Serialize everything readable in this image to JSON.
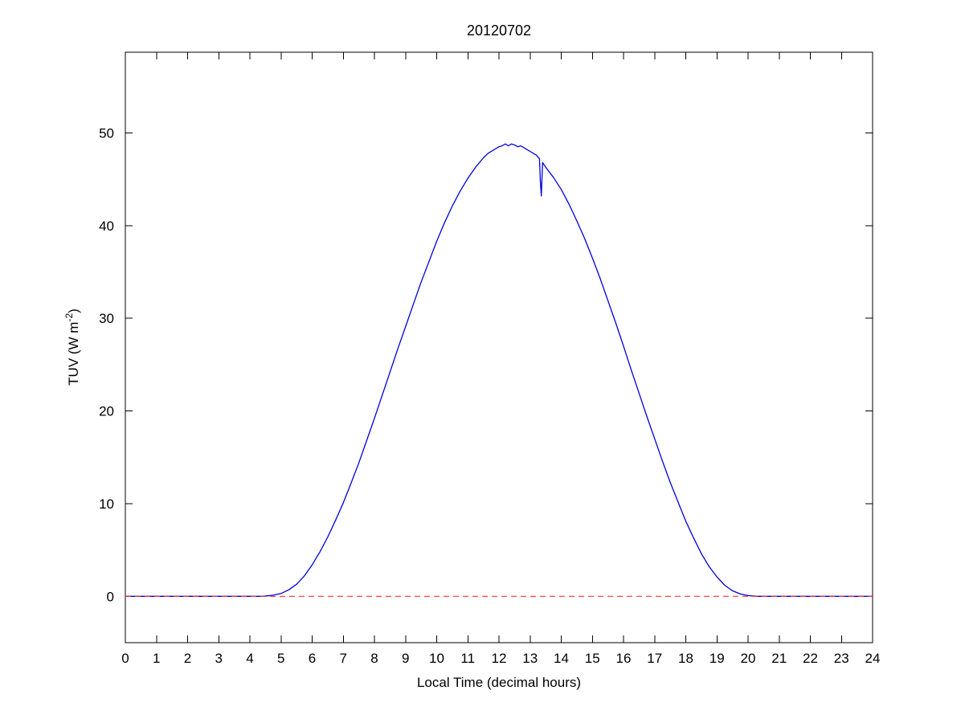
{
  "chart_data": {
    "type": "line",
    "title": "20120702",
    "xlabel": "Local Time (decimal hours)",
    "ylabel": "TUV (W m⁻²)",
    "ylabel_parts": {
      "base": "TUV (W m",
      "sup": "-2",
      "close": ")"
    },
    "xlim": [
      0,
      24
    ],
    "ylim": [
      -5.0,
      58.7
    ],
    "xticks": [
      0,
      1,
      2,
      3,
      4,
      5,
      6,
      7,
      8,
      9,
      10,
      11,
      12,
      13,
      14,
      15,
      16,
      17,
      18,
      19,
      20,
      21,
      22,
      23,
      24
    ],
    "yticks": [
      0,
      10,
      20,
      30,
      40,
      50
    ],
    "grid": false,
    "legend_position": "none",
    "axis_color": "#000000",
    "background_color": "#ffffff",
    "series": [
      {
        "name": "tuv-irradiance-curve",
        "color": "#0000dd",
        "style": "solid",
        "width": 1.3,
        "points": [
          [
            0,
            0
          ],
          [
            0.5,
            0
          ],
          [
            1,
            0
          ],
          [
            1.5,
            0
          ],
          [
            2,
            0
          ],
          [
            2.5,
            0
          ],
          [
            3,
            0
          ],
          [
            3.5,
            0
          ],
          [
            4,
            0
          ],
          [
            4.4,
            0
          ],
          [
            4.7,
            0.1
          ],
          [
            5,
            0.3
          ],
          [
            5.25,
            0.7
          ],
          [
            5.5,
            1.3
          ],
          [
            5.75,
            2.2
          ],
          [
            6,
            3.4
          ],
          [
            6.25,
            4.8
          ],
          [
            6.5,
            6.4
          ],
          [
            6.75,
            8.2
          ],
          [
            7,
            10.1
          ],
          [
            7.25,
            12.2
          ],
          [
            7.5,
            14.4
          ],
          [
            7.75,
            16.8
          ],
          [
            8,
            19.2
          ],
          [
            8.25,
            21.7
          ],
          [
            8.5,
            24.2
          ],
          [
            8.75,
            26.7
          ],
          [
            9,
            29.1
          ],
          [
            9.25,
            31.5
          ],
          [
            9.5,
            33.9
          ],
          [
            9.75,
            36.1
          ],
          [
            10,
            38.3
          ],
          [
            10.25,
            40.3
          ],
          [
            10.5,
            42.1
          ],
          [
            10.75,
            43.7
          ],
          [
            11,
            45.1
          ],
          [
            11.25,
            46.3
          ],
          [
            11.5,
            47.3
          ],
          [
            11.65,
            47.8
          ],
          [
            11.8,
            48.1
          ],
          [
            11.9,
            48.3
          ],
          [
            12,
            48.5
          ],
          [
            12.1,
            48.6
          ],
          [
            12.2,
            48.8
          ],
          [
            12.3,
            48.6
          ],
          [
            12.4,
            48.8
          ],
          [
            12.5,
            48.7
          ],
          [
            12.6,
            48.5
          ],
          [
            12.7,
            48.6
          ],
          [
            12.8,
            48.4
          ],
          [
            12.9,
            48.2
          ],
          [
            13,
            48.0
          ],
          [
            13.1,
            47.8
          ],
          [
            13.2,
            47.6
          ],
          [
            13.3,
            47.2
          ],
          [
            13.33,
            44.8
          ],
          [
            13.36,
            43.2
          ],
          [
            13.4,
            46.8
          ],
          [
            13.5,
            46.3
          ],
          [
            13.75,
            45.2
          ],
          [
            14,
            43.9
          ],
          [
            14.25,
            42.3
          ],
          [
            14.5,
            40.5
          ],
          [
            14.75,
            38.6
          ],
          [
            15,
            36.5
          ],
          [
            15.25,
            34.3
          ],
          [
            15.5,
            31.9
          ],
          [
            15.75,
            29.5
          ],
          [
            16,
            27.0
          ],
          [
            16.25,
            24.4
          ],
          [
            16.5,
            21.9
          ],
          [
            16.75,
            19.4
          ],
          [
            17,
            17.0
          ],
          [
            17.25,
            14.6
          ],
          [
            17.5,
            12.3
          ],
          [
            17.75,
            10.2
          ],
          [
            18,
            8.1
          ],
          [
            18.25,
            6.3
          ],
          [
            18.5,
            4.6
          ],
          [
            18.75,
            3.2
          ],
          [
            19,
            2.1
          ],
          [
            19.25,
            1.2
          ],
          [
            19.5,
            0.6
          ],
          [
            19.75,
            0.25
          ],
          [
            20,
            0.08
          ],
          [
            20.3,
            0
          ],
          [
            20.5,
            0
          ],
          [
            21,
            0
          ],
          [
            21.5,
            0
          ],
          [
            22,
            0
          ],
          [
            22.5,
            0
          ],
          [
            23,
            0
          ],
          [
            23.5,
            0
          ],
          [
            24,
            0
          ]
        ]
      },
      {
        "name": "zero-reference-dashed-line",
        "color": "#ff3333",
        "style": "dashed",
        "dash": "7 5",
        "width": 1.2,
        "points": [
          [
            0,
            0
          ],
          [
            24,
            0
          ]
        ]
      }
    ]
  }
}
